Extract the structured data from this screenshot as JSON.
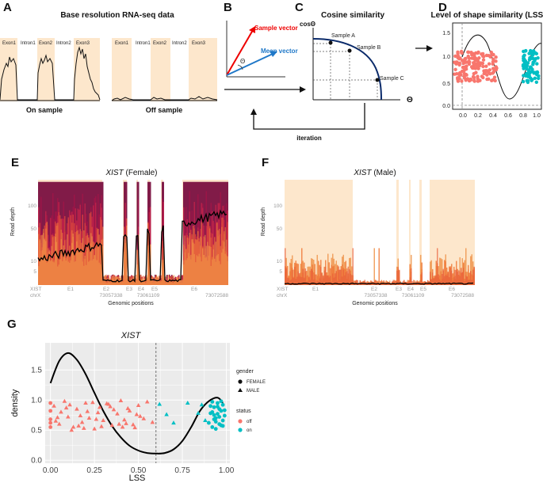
{
  "panel_labels": {
    "a": "A",
    "b": "B",
    "c": "C",
    "d": "D",
    "e": "E",
    "f": "F",
    "g": "G"
  },
  "panel_a": {
    "title": "Base resolution RNA-seq data",
    "segments": [
      "Exon1",
      "Intron1",
      "Exon2",
      "Intron2",
      "Exon3"
    ],
    "on_label": "On sample",
    "off_label": "Off sample"
  },
  "panel_b": {
    "sample_vector": "Sample vector",
    "mean_vector": "Mean vector",
    "theta": "Θ"
  },
  "panel_c": {
    "title": "Cosine similarity",
    "y_axis": "cosΘ",
    "x_axis": "Θ",
    "samples": [
      "Sample A",
      "Sample B",
      "Sample C"
    ],
    "iteration": "iteration"
  },
  "panel_d": {
    "title": "Level of shape similarity (LSS)",
    "y_ticks": [
      "0.0",
      "0.5",
      "1.0",
      "1.5"
    ],
    "x_ticks": [
      "0.0",
      "0.2",
      "0.4",
      "0.6",
      "0.8",
      "1.0"
    ]
  },
  "panel_e": {
    "title_gene": "XIST",
    "title_suffix": " (Female)"
  },
  "panel_f": {
    "title_gene": "XIST",
    "title_suffix": " (Male)"
  },
  "track_common": {
    "y_label": "Read depth",
    "y_ticks": [
      "100",
      "50",
      "10",
      "5"
    ],
    "gene_label": "XIST",
    "chr_label": "chrX",
    "exons": [
      "E1",
      "E2",
      "E3",
      "E4",
      "E5",
      "E6"
    ],
    "coords": [
      "73057338",
      "73061109",
      "73072588"
    ],
    "x_label": "Genomic positions"
  },
  "panel_g": {
    "title": "XIST",
    "legend_gender_title": "gender",
    "legend_gender": [
      "FEMALE",
      "MALE"
    ],
    "legend_status_title": "status",
    "legend_status": [
      "off",
      "on"
    ],
    "colors": {
      "off": "#F8766D",
      "on": "#00BFC4",
      "density_line": "#000000"
    },
    "chart_data": {
      "type": "scatter",
      "title": "XIST",
      "xlabel": "LSS",
      "ylabel": "density",
      "xlim": [
        -0.03,
        1.02
      ],
      "ylim": [
        -0.05,
        1.95
      ],
      "x_ticks": [
        0.0,
        0.25,
        0.5,
        0.75,
        1.0
      ],
      "x_tick_labels": [
        "0.00",
        "0.25",
        "0.50",
        "0.75",
        "1.00"
      ],
      "y_ticks": [
        0.0,
        0.5,
        1.0,
        1.5
      ],
      "y_tick_labels": [
        "0.0",
        "0.5",
        "1.0",
        "1.5"
      ],
      "threshold_x": 0.6,
      "density_curve": {
        "x": [
          0.0,
          0.05,
          0.1,
          0.15,
          0.2,
          0.25,
          0.3,
          0.35,
          0.4,
          0.45,
          0.5,
          0.55,
          0.6,
          0.65,
          0.7,
          0.75,
          0.8,
          0.85,
          0.9,
          0.95,
          0.98
        ],
        "y": [
          1.28,
          1.65,
          1.78,
          1.67,
          1.43,
          1.12,
          0.82,
          0.57,
          0.38,
          0.24,
          0.16,
          0.12,
          0.11,
          0.12,
          0.18,
          0.32,
          0.55,
          0.82,
          0.98,
          1.04,
          0.95
        ]
      },
      "series": [
        {
          "name": "off",
          "gender": "FEMALE",
          "x": [
            0.0,
            0.0,
            0.0,
            0.0,
            0.0
          ],
          "y": [
            0.55,
            0.68,
            0.82,
            0.95,
            0.62
          ]
        },
        {
          "name": "off",
          "gender": "MALE",
          "x": [
            0.02,
            0.05,
            0.08,
            0.1,
            0.13,
            0.15,
            0.18,
            0.2,
            0.22,
            0.25,
            0.28,
            0.3,
            0.33,
            0.35,
            0.38,
            0.4,
            0.43,
            0.45,
            0.48,
            0.5,
            0.53,
            0.55,
            0.58,
            0.06,
            0.12,
            0.17,
            0.24,
            0.29,
            0.36,
            0.42,
            0.47,
            0.04,
            0.09,
            0.19,
            0.27,
            0.32,
            0.39,
            0.44,
            0.51,
            0.03,
            0.11,
            0.16,
            0.21,
            0.26,
            0.34,
            0.41,
            0.49
          ],
          "y": [
            0.9,
            0.6,
            0.98,
            0.72,
            0.55,
            0.85,
            0.63,
            0.95,
            0.7,
            0.52,
            0.88,
            0.66,
            0.93,
            0.58,
            0.77,
            0.99,
            0.61,
            0.82,
            0.54,
            0.91,
            0.69,
            0.97,
            0.63,
            0.8,
            0.5,
            0.74,
            0.96,
            0.56,
            0.84,
            0.67,
            0.59,
            0.71,
            0.87,
            0.53,
            0.79,
            0.94,
            0.6,
            0.86,
            0.73,
            0.65,
            0.92,
            0.57,
            0.81,
            0.68,
            0.89,
            0.55,
            0.76
          ]
        },
        {
          "name": "on",
          "gender": "MALE",
          "x": [
            0.62,
            0.66,
            0.7,
            0.78,
            0.84,
            0.88,
            0.86
          ],
          "y": [
            0.93,
            0.76,
            0.62,
            0.95,
            0.78,
            0.66,
            0.92
          ]
        },
        {
          "name": "on",
          "gender": "FEMALE",
          "x": [
            0.9,
            0.91,
            0.92,
            0.93,
            0.94,
            0.95,
            0.96,
            0.97,
            0.98,
            0.99,
            0.92,
            0.94,
            0.96,
            0.98,
            0.93,
            0.95,
            0.97,
            0.91,
            0.99,
            0.94,
            0.96,
            0.92,
            0.98,
            0.95,
            0.93,
            0.97
          ],
          "y": [
            0.62,
            0.78,
            0.55,
            0.88,
            0.7,
            0.95,
            0.6,
            0.82,
            0.66,
            0.74,
            0.97,
            0.52,
            0.85,
            0.92,
            0.68,
            0.77,
            0.58,
            0.9,
            0.83,
            0.64,
            0.72,
            0.8,
            0.57,
            0.89,
            0.75,
            0.98
          ]
        }
      ]
    }
  }
}
